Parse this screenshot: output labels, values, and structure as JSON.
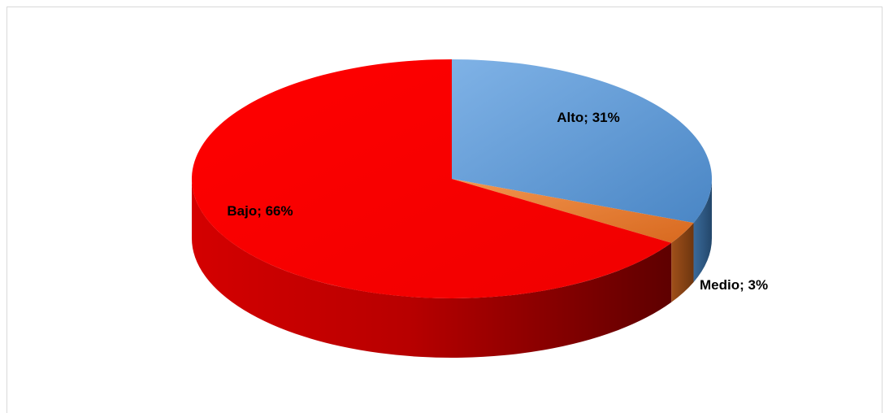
{
  "chart_data": {
    "type": "pie",
    "title": "",
    "categories": [
      "Alto",
      "Medio",
      "Bajo"
    ],
    "values": [
      31,
      3,
      66
    ],
    "colors": [
      "#5b9bd5",
      "#ed7d31",
      "#ff0000"
    ],
    "data_labels": [
      "Alto; 31%",
      "Medio; 3%",
      "Bajo; 66%"
    ],
    "style": "3d",
    "legend": "none"
  }
}
